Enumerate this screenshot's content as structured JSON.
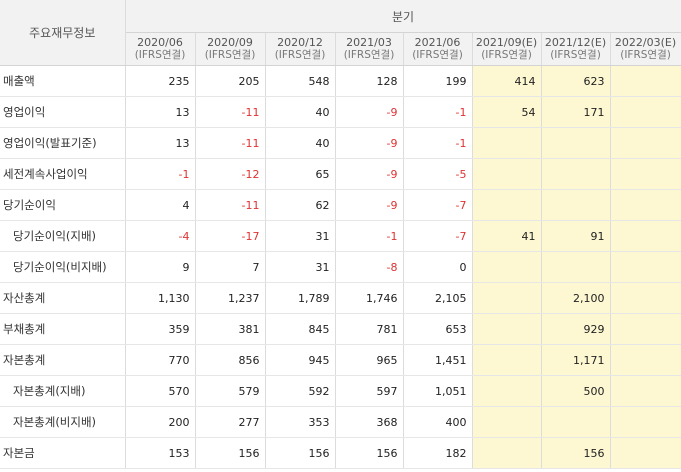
{
  "header": {
    "row_label": "주요재무정보",
    "group_label": "분기",
    "columns": [
      {
        "period": "2020/06",
        "basis": "(IFRS연결)"
      },
      {
        "period": "2020/09",
        "basis": "(IFRS연결)"
      },
      {
        "period": "2020/12",
        "basis": "(IFRS연결)"
      },
      {
        "period": "2021/03",
        "basis": "(IFRS연결)"
      },
      {
        "period": "2021/06",
        "basis": "(IFRS연결)"
      },
      {
        "period": "2021/09(E)",
        "basis": "(IFRS연결)"
      },
      {
        "period": "2021/12(E)",
        "basis": "(IFRS연결)"
      },
      {
        "period": "2022/03(E)",
        "basis": "(IFRS연결)"
      }
    ]
  },
  "rows": [
    {
      "label": "매출액",
      "indent": false,
      "values": [
        "235",
        "205",
        "548",
        "128",
        "199",
        "414",
        "623",
        ""
      ]
    },
    {
      "label": "영업이익",
      "indent": false,
      "values": [
        "13",
        "-11",
        "40",
        "-9",
        "-1",
        "54",
        "171",
        ""
      ]
    },
    {
      "label": "영업이익(발표기준)",
      "indent": false,
      "values": [
        "13",
        "-11",
        "40",
        "-9",
        "-1",
        "",
        "",
        ""
      ]
    },
    {
      "label": "세전계속사업이익",
      "indent": false,
      "values": [
        "-1",
        "-12",
        "65",
        "-9",
        "-5",
        "",
        "",
        ""
      ]
    },
    {
      "label": "당기순이익",
      "indent": false,
      "values": [
        "4",
        "-11",
        "62",
        "-9",
        "-7",
        "",
        "",
        ""
      ]
    },
    {
      "label": "당기순이익(지배)",
      "indent": true,
      "values": [
        "-4",
        "-17",
        "31",
        "-1",
        "-7",
        "41",
        "91",
        ""
      ]
    },
    {
      "label": "당기순이익(비지배)",
      "indent": true,
      "values": [
        "9",
        "7",
        "31",
        "-8",
        "0",
        "",
        "",
        ""
      ]
    },
    {
      "label": "자산총계",
      "indent": false,
      "values": [
        "1,130",
        "1,237",
        "1,789",
        "1,746",
        "2,105",
        "",
        "2,100",
        ""
      ]
    },
    {
      "label": "부채총계",
      "indent": false,
      "values": [
        "359",
        "381",
        "845",
        "781",
        "653",
        "",
        "929",
        ""
      ]
    },
    {
      "label": "자본총계",
      "indent": false,
      "values": [
        "770",
        "856",
        "945",
        "965",
        "1,451",
        "",
        "1,171",
        ""
      ]
    },
    {
      "label": "자본총계(지배)",
      "indent": true,
      "values": [
        "570",
        "579",
        "592",
        "597",
        "1,051",
        "",
        "500",
        ""
      ]
    },
    {
      "label": "자본총계(비지배)",
      "indent": true,
      "values": [
        "200",
        "277",
        "353",
        "368",
        "400",
        "",
        "",
        ""
      ]
    },
    {
      "label": "자본금",
      "indent": false,
      "values": [
        "153",
        "156",
        "156",
        "156",
        "182",
        "",
        "156",
        ""
      ]
    }
  ],
  "colors": {
    "estimate_bg": "#fdf8d2",
    "negative": "#e03232",
    "header_bg": "#f2f2f2"
  }
}
